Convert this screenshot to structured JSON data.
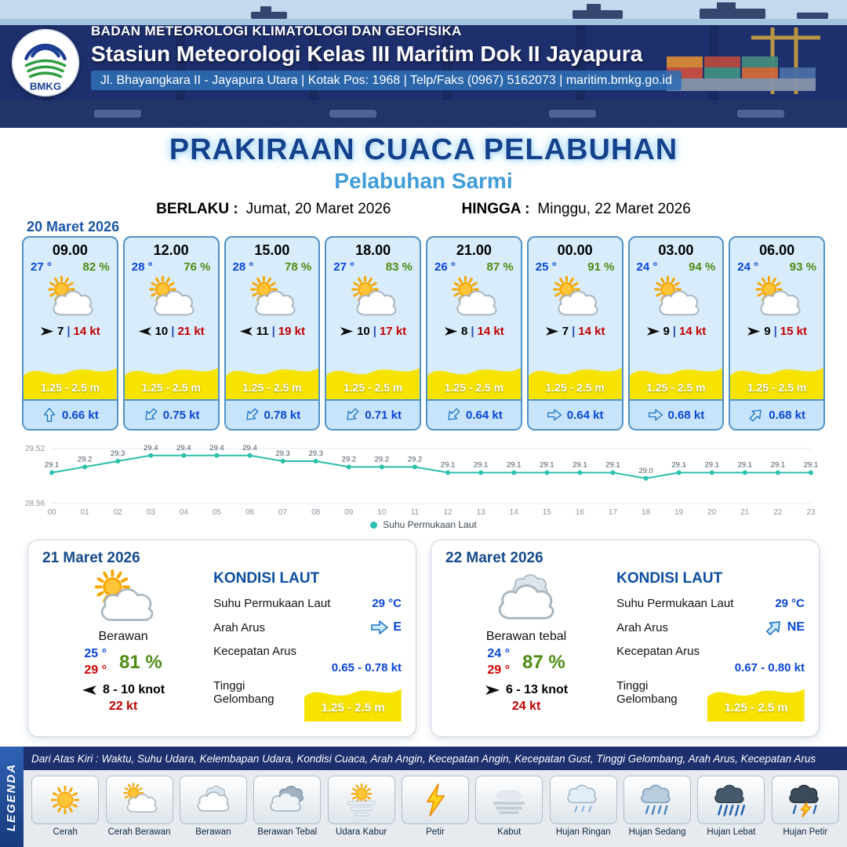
{
  "colors": {
    "navy": "#1e2f6e",
    "title_blue": "#14418c",
    "sub_blue": "#3f9cd9",
    "temp_blue": "#0a46d8",
    "humidity_green": "#4e8c12",
    "gust_red": "#c00000",
    "temp_max_red": "#d00000",
    "wave_yellow": "#f6e400",
    "card_bg": "#d9ecfb",
    "card_border": "#4f92c9",
    "chart_teal": "#2abfae",
    "current_blue": "#1b74c5"
  },
  "header": {
    "logo_text": "BMKG",
    "org": "BADAN METEOROLOGI KLIMATOLOGI DAN GEOFISIKA",
    "station": "Stasiun Meteorologi Kelas III Maritim Dok II Jayapura",
    "address": "Jl. Bhayangkara II - Jayapura Utara | Kotak Pos: 1968 | Telp/Faks (0967) 5162073 | maritim.bmkg.go.id"
  },
  "title": {
    "main": "PRAKIRAAN CUACA PELABUHAN",
    "sub": "Pelabuhan Sarmi",
    "berlaku_label": "BERLAKU :",
    "berlaku_value": "Jumat, 20 Maret 2026",
    "hingga_label": "HINGGA :",
    "hingga_value": "Minggu, 22 Maret 2026"
  },
  "day1": {
    "date": "20 Maret 2026",
    "cards": [
      {
        "time": "09.00",
        "temp": "27 °",
        "humidity": "82 %",
        "icon": "sun-cloud",
        "wind_dir": "right",
        "wind_speed": "7",
        "gust": "14 kt",
        "wave": "1.25 - 2.5 m",
        "current_dir": "N",
        "current_speed": "0.66 kt"
      },
      {
        "time": "12.00",
        "temp": "28 °",
        "humidity": "76 %",
        "icon": "sun-cloud",
        "wind_dir": "left",
        "wind_speed": "10",
        "gust": "21 kt",
        "wave": "1.25 - 2.5 m",
        "current_dir": "SW",
        "current_speed": "0.75 kt"
      },
      {
        "time": "15.00",
        "temp": "28 °",
        "humidity": "78 %",
        "icon": "sun-cloud",
        "wind_dir": "left",
        "wind_speed": "11",
        "gust": "19 kt",
        "wave": "1.25 - 2.5 m",
        "current_dir": "SW",
        "current_speed": "0.78 kt"
      },
      {
        "time": "18.00",
        "temp": "27 °",
        "humidity": "83 %",
        "icon": "sun-cloud",
        "wind_dir": "right",
        "wind_speed": "10",
        "gust": "17 kt",
        "wave": "1.25 - 2.5 m",
        "current_dir": "SW",
        "current_speed": "0.71 kt"
      },
      {
        "time": "21.00",
        "temp": "26 °",
        "humidity": "87 %",
        "icon": "sun-cloud",
        "wind_dir": "right",
        "wind_speed": "8",
        "gust": "14 kt",
        "wave": "1.25 - 2.5 m",
        "current_dir": "SW",
        "current_speed": "0.64 kt"
      },
      {
        "time": "00.00",
        "temp": "25 °",
        "humidity": "91 %",
        "icon": "sun-cloud",
        "wind_dir": "right",
        "wind_speed": "7",
        "gust": "14 kt",
        "wave": "1.25 - 2.5 m",
        "current_dir": "E",
        "current_speed": "0.64 kt"
      },
      {
        "time": "03.00",
        "temp": "24 °",
        "humidity": "94 %",
        "icon": "sun-cloud",
        "wind_dir": "right",
        "wind_speed": "9",
        "gust": "14 kt",
        "wave": "1.25 - 2.5 m",
        "current_dir": "E",
        "current_speed": "0.68 kt"
      },
      {
        "time": "06.00",
        "temp": "24 °",
        "humidity": "93 %",
        "icon": "sun-cloud",
        "wind_dir": "right",
        "wind_speed": "9",
        "gust": "15 kt",
        "wave": "1.25 - 2.5 m",
        "current_dir": "NE",
        "current_speed": "0.68 kt"
      }
    ]
  },
  "chart_data": {
    "type": "line",
    "title": "",
    "legend": "Suhu Permukaan Laut",
    "x": [
      "00",
      "01",
      "02",
      "03",
      "04",
      "05",
      "06",
      "07",
      "08",
      "09",
      "10",
      "11",
      "12",
      "13",
      "14",
      "15",
      "16",
      "17",
      "18",
      "19",
      "20",
      "21",
      "22",
      "23"
    ],
    "values": [
      29.1,
      29.2,
      29.3,
      29.4,
      29.4,
      29.4,
      29.4,
      29.3,
      29.3,
      29.2,
      29.2,
      29.2,
      29.1,
      29.1,
      29.1,
      29.1,
      29.1,
      29.1,
      29.0,
      29.1,
      29.1,
      29.1,
      29.1,
      29.1
    ],
    "ylim": [
      28.56,
      29.52
    ],
    "y_tick_labels": [
      "29.52",
      "28.56"
    ],
    "xlabel": "",
    "ylabel": "",
    "grid": false,
    "legend_position": "bottom",
    "line_color": "#2abfae"
  },
  "sea_labels": {
    "title": "KONDISI LAUT",
    "sst": "Suhu Permukaan Laut",
    "dir": "Arah Arus",
    "speed": "Kecepatan Arus",
    "wave": "Tinggi Gelombang"
  },
  "daily": [
    {
      "date": "21 Maret 2026",
      "icon": "sun-cloud",
      "condition": "Berawan",
      "temp_min": "25 °",
      "temp_max": "29 °",
      "humidity": "81 %",
      "wind_dir": "left",
      "wind_range": "8  - 10 knot",
      "gust": "22 kt",
      "sea": {
        "sst": "29 °C",
        "dir": "E",
        "speed": "0.65 -  0.78 kt",
        "wave": "1.25 - 2.5 m"
      }
    },
    {
      "date": "22 Maret 2026",
      "icon": "cloud",
      "condition": "Berawan tebal",
      "temp_min": "24 °",
      "temp_max": "29 °",
      "humidity": "87 %",
      "wind_dir": "right",
      "wind_range": "6  - 13 knot",
      "gust": "24 kt",
      "sea": {
        "sst": "29 °C",
        "dir": "NE",
        "speed": "0.67  - 0.80 kt",
        "wave": "1.25 - 2.5 m"
      }
    }
  ],
  "legend": {
    "title": "LEGENDA",
    "description": "Dari Atas Kiri : Waktu, Suhu Udara, Kelembapan Udara, Kondisi Cuaca, Arah Angin, Kecepatan Angin, Kecepatan Gust, Tinggi Gelombang, Arah Arus, Kecepatan Arus",
    "items": [
      {
        "label": "Cerah",
        "icon": "sun"
      },
      {
        "label": "Cerah Berawan",
        "icon": "sun-cloud"
      },
      {
        "label": "Berawan",
        "icon": "cloud"
      },
      {
        "label": "Berawan Tebal",
        "icon": "clouds"
      },
      {
        "label": "Udara Kabur",
        "icon": "haze"
      },
      {
        "label": "Petir",
        "icon": "lightning"
      },
      {
        "label": "Kabut",
        "icon": "fog"
      },
      {
        "label": "Hujan Ringan",
        "icon": "rain-light"
      },
      {
        "label": "Hujan Sedang",
        "icon": "rain-mid"
      },
      {
        "label": "Hujan Lebat",
        "icon": "rain-heavy"
      },
      {
        "label": "Hujan Petir",
        "icon": "storm"
      }
    ]
  }
}
